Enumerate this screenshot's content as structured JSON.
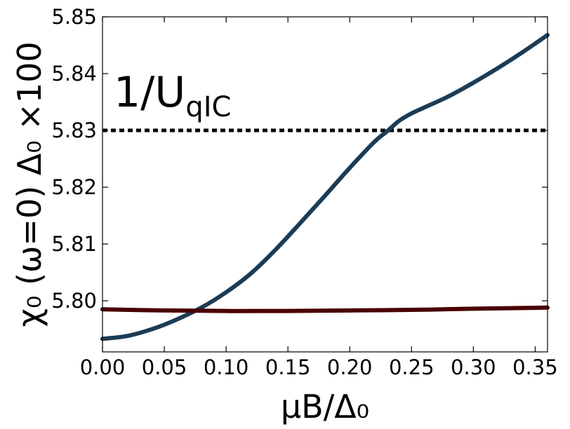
{
  "chart_data": {
    "type": "line",
    "xlabel": "μB/Δ₀",
    "ylabel": "χ₀ (ω=0) Δ₀ ×100",
    "xlim": [
      0.0,
      0.36
    ],
    "ylim": [
      5.791,
      5.85
    ],
    "x_ticks": [
      "0.00",
      "0.05",
      "0.10",
      "0.15",
      "0.20",
      "0.25",
      "0.30",
      "0.35"
    ],
    "y_ticks": [
      "5.80",
      "5.81",
      "5.82",
      "5.83",
      "5.84",
      "5.85"
    ],
    "annotation": {
      "text": "1/U",
      "subscript": "qIC"
    },
    "reference_line": {
      "y": 5.83,
      "style": "dotted",
      "color": "#000000"
    },
    "series": [
      {
        "color": "#1c3c55",
        "x": [
          0.0,
          0.02,
          0.04,
          0.06,
          0.08,
          0.1,
          0.12,
          0.14,
          0.16,
          0.18,
          0.2,
          0.22,
          0.23,
          0.24,
          0.25,
          0.26,
          0.28,
          0.3,
          0.32,
          0.34,
          0.36
        ],
        "y": [
          5.7933,
          5.7938,
          5.795,
          5.7967,
          5.7988,
          5.8015,
          5.8048,
          5.809,
          5.8137,
          5.8185,
          5.8234,
          5.828,
          5.8298,
          5.8317,
          5.833,
          5.834,
          5.836,
          5.8384,
          5.841,
          5.8438,
          5.8468
        ]
      },
      {
        "color": "#4a0000",
        "x": [
          0.0,
          0.05,
          0.1,
          0.15,
          0.2,
          0.25,
          0.3,
          0.36
        ],
        "y": [
          5.7985,
          5.7983,
          5.7982,
          5.7982,
          5.7983,
          5.7984,
          5.7986,
          5.7988
        ]
      }
    ]
  }
}
